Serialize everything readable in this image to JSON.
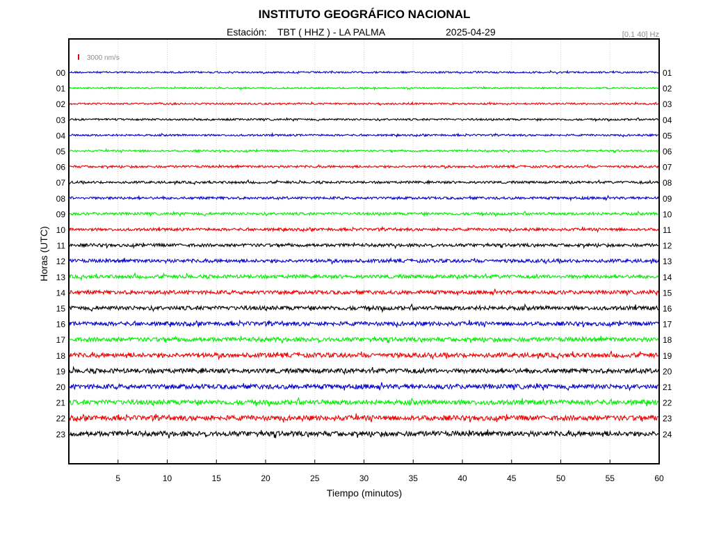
{
  "header": {
    "title": "INSTITUTO GEOGRÁFICO NACIONAL",
    "station_label": "Estación:",
    "station": "TBT ( HHZ ) - LA PALMA",
    "date": "2025-04-29",
    "filter": "[0.1 40] Hz"
  },
  "chart_data": {
    "type": "line",
    "subtype": "helicorder",
    "xlabel": "Tiempo (minutos)",
    "ylabel": "Horas (UTC)",
    "xlim": [
      0,
      60
    ],
    "x_ticks": [
      "5",
      "10",
      "15",
      "20",
      "25",
      "30",
      "35",
      "40",
      "45",
      "50",
      "55",
      "60"
    ],
    "left_labels": [
      "00",
      "01",
      "02",
      "03",
      "04",
      "05",
      "06",
      "07",
      "08",
      "09",
      "10",
      "11",
      "12",
      "13",
      "14",
      "15",
      "16",
      "17",
      "18",
      "19",
      "20",
      "21",
      "22",
      "23"
    ],
    "right_labels": [
      "01",
      "02",
      "03",
      "04",
      "05",
      "06",
      "07",
      "08",
      "09",
      "10",
      "11",
      "12",
      "13",
      "14",
      "15",
      "16",
      "17",
      "18",
      "19",
      "20",
      "21",
      "22",
      "23",
      "24"
    ],
    "scale_label": "3000 nm/s",
    "colors": [
      "#0000cc",
      "#00ee00",
      "#ee0000",
      "#000000"
    ],
    "scale_color": "#ee0000",
    "relative_noise": [
      0.55,
      0.5,
      0.55,
      0.6,
      0.6,
      0.6,
      0.7,
      0.75,
      0.8,
      0.85,
      0.9,
      1.0,
      1.1,
      1.15,
      1.2,
      1.3,
      1.3,
      1.35,
      1.45,
      1.45,
      1.5,
      1.55,
      1.6,
      1.6
    ],
    "grid": true
  }
}
